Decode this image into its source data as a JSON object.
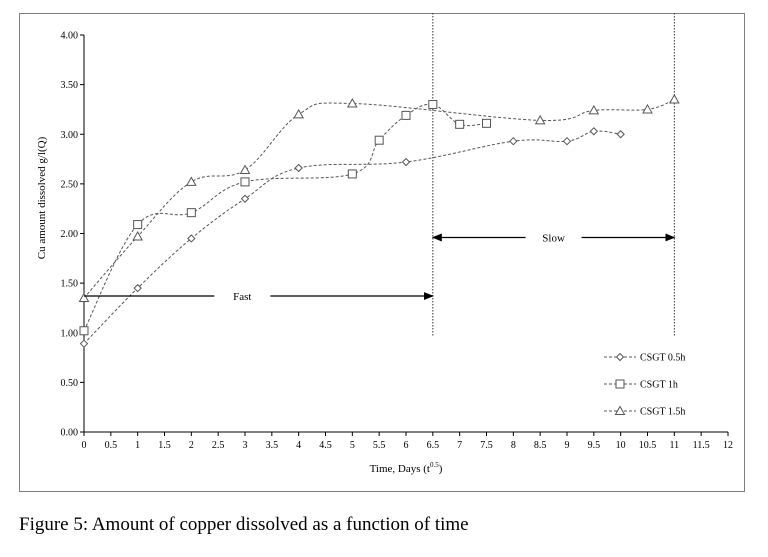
{
  "caption": "Figure 5: Amount of copper dissolved as a function of time",
  "chart_data": {
    "type": "line",
    "xlabel": "Time, Days (t",
    "xlabel_sup": "0.5",
    "xlabel_close": ")",
    "ylabel": "Cu amount dissolved g/l(Q)",
    "xlim": [
      0,
      12
    ],
    "ylim": [
      0,
      4
    ],
    "x_ticks": [
      "0",
      "0.5",
      "1",
      "1.5",
      "2",
      "2.5",
      "3",
      "3.5",
      "4",
      "4.5",
      "5",
      "5.5",
      "6",
      "6.5",
      "7",
      "7.5",
      "8",
      "8.5",
      "9",
      "9.5",
      "10",
      "10.5",
      "11",
      "11.5",
      "12"
    ],
    "y_ticks": [
      "0.00",
      "0.50",
      "1.00",
      "1.50",
      "2.00",
      "2.50",
      "3.00",
      "3.50",
      "4.00"
    ],
    "grid": false,
    "legend_position": "right",
    "line_color": "#555555",
    "series": [
      {
        "name": "CSGT 0.5h",
        "marker": "diamond",
        "x": [
          0,
          1,
          2,
          3,
          4,
          6,
          8,
          9,
          9.5,
          10
        ],
        "y": [
          0.89,
          1.45,
          1.95,
          2.35,
          2.66,
          2.72,
          2.93,
          2.93,
          3.03,
          3.0
        ]
      },
      {
        "name": "CSGT 1h",
        "marker": "square",
        "x": [
          0,
          1,
          2,
          3,
          5,
          5.5,
          6,
          6.5,
          7,
          7.5
        ],
        "y": [
          1.02,
          2.09,
          2.21,
          2.52,
          2.6,
          2.94,
          3.19,
          3.3,
          3.1,
          3.11
        ]
      },
      {
        "name": "CSGT 1.5h",
        "marker": "triangle",
        "x": [
          0,
          1,
          2,
          3,
          4,
          5,
          8.5,
          9.5,
          10.5,
          11
        ],
        "y": [
          1.35,
          1.97,
          2.52,
          2.64,
          3.2,
          3.31,
          3.14,
          3.24,
          3.25,
          3.35
        ]
      }
    ],
    "vertical_lines_x": [
      6.5,
      11
    ],
    "annotations": [
      {
        "label": "Fast",
        "x_from": 0,
        "x_to": 6.5,
        "y": 1.37,
        "label_x": 2.95
      },
      {
        "label": "Slow",
        "x_from": 6.5,
        "x_to": 11,
        "y": 1.96,
        "label_x": 8.75
      }
    ]
  }
}
